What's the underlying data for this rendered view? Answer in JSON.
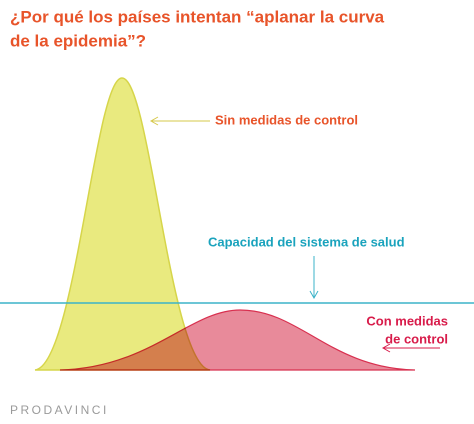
{
  "header": {
    "title_lines": [
      "¿Por qué los países intentan “aplanar la curva",
      "de la epidemia”?"
    ]
  },
  "labels": {
    "no_measures": "Sin medidas de control",
    "capacity": "Capacidad del sistema de salud",
    "with_measures_lines": [
      "Con medidas",
      "de control"
    ]
  },
  "footer": {
    "brand": "PRODAVINCI"
  }
}
